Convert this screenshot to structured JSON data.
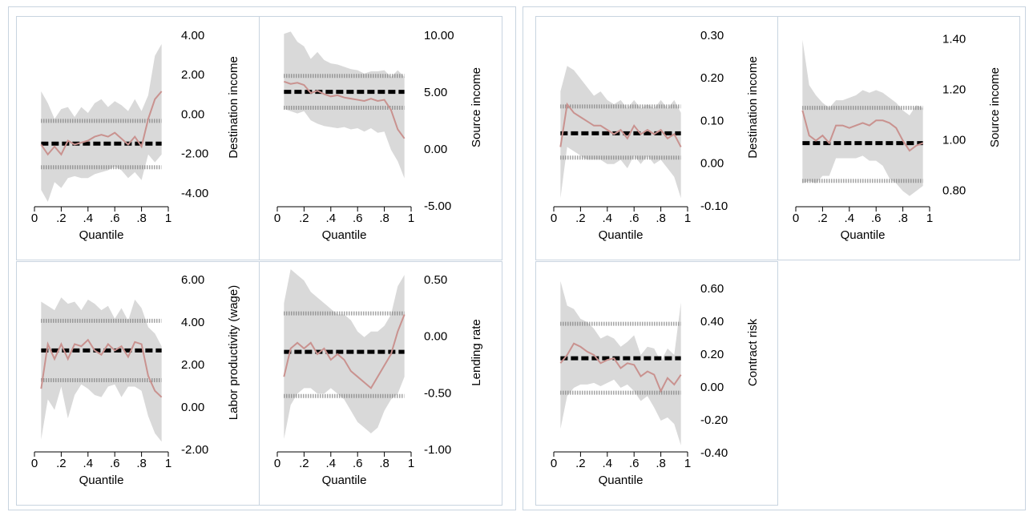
{
  "chart_data": [
    {
      "type": "quantile",
      "xlabel": "Quantile",
      "ylabel": "Destination income",
      "color": "#c9928f",
      "band_color": "#d9d9d9",
      "x": [
        0.05,
        0.1,
        0.15,
        0.2,
        0.25,
        0.3,
        0.35,
        0.4,
        0.45,
        0.5,
        0.55,
        0.6,
        0.65,
        0.7,
        0.75,
        0.8,
        0.85,
        0.9,
        0.95
      ],
      "values": [
        -1.5,
        -2.0,
        -1.6,
        -2.0,
        -1.3,
        -1.5,
        -1.4,
        -1.3,
        -1.1,
        -1.0,
        -1.1,
        -0.9,
        -1.2,
        -1.5,
        -1.1,
        -1.6,
        -0.2,
        0.8,
        1.2
      ],
      "upper": [
        1.2,
        0.6,
        -0.2,
        0.3,
        0.4,
        -0.1,
        0.4,
        0.1,
        0.6,
        0.8,
        0.4,
        0.7,
        0.5,
        0.2,
        0.8,
        0.2,
        1.0,
        3.0,
        3.6
      ],
      "lower": [
        -3.8,
        -4.4,
        -3.4,
        -3.7,
        -3.2,
        -3.1,
        -3.2,
        -3.2,
        -3.0,
        -2.9,
        -2.8,
        -2.6,
        -2.8,
        -3.2,
        -2.9,
        -3.3,
        -2.0,
        -2.4,
        -2.0
      ],
      "ols": -1.45,
      "ols_ci": [
        -2.65,
        -0.3
      ],
      "xlim": [
        0,
        1
      ],
      "xticks": [
        0,
        {
          "value": 0.2,
          "label": ".2"
        },
        {
          "value": 0.4,
          "label": ".4"
        },
        {
          "value": 0.6,
          "label": ".6"
        },
        {
          "value": 0.8,
          "label": ".8"
        },
        1
      ],
      "ylim": [
        -4.65,
        4.61
      ],
      "yticks": [
        {
          "value": 4,
          "label": "4.00"
        },
        {
          "value": 2,
          "label": "2.00"
        },
        {
          "value": 0,
          "label": "0.00"
        },
        {
          "value": -2,
          "label": "-2.00"
        },
        {
          "value": -4,
          "label": "-4.00"
        }
      ]
    },
    {
      "type": "quantile",
      "xlabel": "Quantile",
      "ylabel": "Source income",
      "color": "#c9928f",
      "band_color": "#d9d9d9",
      "x": [
        0.05,
        0.1,
        0.15,
        0.2,
        0.25,
        0.3,
        0.35,
        0.4,
        0.45,
        0.5,
        0.55,
        0.6,
        0.65,
        0.7,
        0.75,
        0.8,
        0.85,
        0.9,
        0.95
      ],
      "values": [
        6.0,
        5.8,
        5.9,
        5.7,
        5.0,
        5.2,
        4.9,
        4.7,
        4.8,
        4.6,
        4.5,
        4.4,
        4.3,
        4.5,
        4.3,
        4.4,
        3.5,
        1.8,
        1.0
      ],
      "upper": [
        10.2,
        10.4,
        9.5,
        9.1,
        8.0,
        8.6,
        7.9,
        7.6,
        7.5,
        7.3,
        7.1,
        7.0,
        6.7,
        6.9,
        6.9,
        7.0,
        6.4,
        7.0,
        6.4
      ],
      "lower": [
        3.6,
        3.4,
        3.2,
        3.4,
        2.6,
        2.3,
        2.1,
        2.0,
        1.9,
        2.0,
        1.8,
        1.9,
        1.6,
        1.9,
        1.5,
        1.6,
        0.0,
        -1.0,
        -2.5
      ],
      "ols": 5.1,
      "ols_ci": [
        3.7,
        6.5
      ],
      "xlim": [
        0,
        1
      ],
      "xticks": [
        0,
        {
          "value": 0.2,
          "label": ".2"
        },
        {
          "value": 0.4,
          "label": ".4"
        },
        {
          "value": 0.6,
          "label": ".6"
        },
        {
          "value": 0.8,
          "label": ".8"
        },
        1
      ],
      "ylim": [
        -5,
        11.06
      ],
      "yticks": [
        {
          "value": 10,
          "label": "10.00"
        },
        {
          "value": 5,
          "label": "5.00"
        },
        {
          "value": 0,
          "label": "0.00"
        },
        {
          "value": -5,
          "label": "-5.00"
        }
      ]
    },
    {
      "type": "quantile",
      "xlabel": "Quantile",
      "ylabel": "Labor productivity (wage)",
      "color": "#c9928f",
      "band_color": "#d9d9d9",
      "x": [
        0.05,
        0.1,
        0.15,
        0.2,
        0.25,
        0.3,
        0.35,
        0.4,
        0.45,
        0.5,
        0.55,
        0.6,
        0.65,
        0.7,
        0.75,
        0.8,
        0.85,
        0.9,
        0.95
      ],
      "values": [
        0.9,
        3.0,
        2.3,
        3.0,
        2.3,
        3.0,
        2.9,
        3.2,
        2.7,
        2.5,
        3.0,
        2.7,
        2.9,
        2.4,
        3.1,
        3.0,
        1.5,
        0.8,
        0.5
      ],
      "upper": [
        5.0,
        4.8,
        4.6,
        5.2,
        4.9,
        5.0,
        4.6,
        5.1,
        4.9,
        4.6,
        4.8,
        4.2,
        4.7,
        4.1,
        5.1,
        4.7,
        3.8,
        3.5,
        2.9
      ],
      "lower": [
        -1.5,
        0.4,
        -0.1,
        1.0,
        -0.5,
        0.6,
        1.1,
        0.9,
        0.6,
        0.5,
        1.0,
        1.1,
        0.5,
        1.0,
        1.0,
        0.8,
        -0.4,
        -1.2,
        -1.6
      ],
      "ols": 2.7,
      "ols_ci": [
        1.3,
        4.1
      ],
      "xlim": [
        0,
        1
      ],
      "xticks": [
        0,
        {
          "value": 0.2,
          "label": ".2"
        },
        {
          "value": 0.4,
          "label": ".4"
        },
        {
          "value": 0.6,
          "label": ".6"
        },
        {
          "value": 0.8,
          "label": ".8"
        },
        1
      ],
      "ylim": [
        -2.08,
        6.53
      ],
      "yticks": [
        {
          "value": 6,
          "label": "6.00"
        },
        {
          "value": 4,
          "label": "4.00"
        },
        {
          "value": 2,
          "label": "2.00"
        },
        {
          "value": 0,
          "label": "0.00"
        },
        {
          "value": -2,
          "label": "-2.00"
        }
      ]
    },
    {
      "type": "quantile",
      "xlabel": "Quantile",
      "ylabel": "Lending rate",
      "color": "#c9928f",
      "band_color": "#d9d9d9",
      "x": [
        0.05,
        0.1,
        0.15,
        0.2,
        0.25,
        0.3,
        0.35,
        0.4,
        0.45,
        0.5,
        0.55,
        0.6,
        0.65,
        0.7,
        0.75,
        0.8,
        0.85,
        0.9,
        0.95
      ],
      "values": [
        -0.35,
        -0.1,
        -0.05,
        -0.1,
        -0.05,
        -0.15,
        -0.1,
        -0.2,
        -0.15,
        -0.2,
        -0.3,
        -0.35,
        -0.4,
        -0.45,
        -0.35,
        -0.25,
        -0.15,
        0.05,
        0.2
      ],
      "upper": [
        0.3,
        0.6,
        0.55,
        0.5,
        0.4,
        0.35,
        0.3,
        0.25,
        0.2,
        0.2,
        0.15,
        0.05,
        0.0,
        0.05,
        0.05,
        0.1,
        0.2,
        0.45,
        0.55
      ],
      "lower": [
        -0.9,
        -0.6,
        -0.5,
        -0.45,
        -0.45,
        -0.5,
        -0.5,
        -0.45,
        -0.5,
        -0.55,
        -0.65,
        -0.75,
        -0.8,
        -0.85,
        -0.8,
        -0.65,
        -0.55,
        -0.5,
        -0.35
      ],
      "ols": -0.13,
      "ols_ci": [
        -0.52,
        0.21
      ],
      "xlim": [
        0,
        1
      ],
      "xticks": [
        0,
        {
          "value": 0.2,
          "label": ".2"
        },
        {
          "value": 0.4,
          "label": ".4"
        },
        {
          "value": 0.6,
          "label": ".6"
        },
        {
          "value": 0.8,
          "label": ".8"
        },
        1
      ],
      "ylim": [
        -1.014,
        0.6
      ],
      "yticks": [
        {
          "value": 0.5,
          "label": "0.50"
        },
        {
          "value": 0,
          "label": "0.00"
        },
        {
          "value": -0.5,
          "label": "-0.50"
        },
        {
          "value": -1,
          "label": "-1.00"
        }
      ]
    },
    {
      "type": "quantile",
      "xlabel": "Quantile",
      "ylabel": "Destination income",
      "color": "#c9928f",
      "band_color": "#d9d9d9",
      "x": [
        0.05,
        0.1,
        0.15,
        0.2,
        0.25,
        0.3,
        0.35,
        0.4,
        0.45,
        0.5,
        0.55,
        0.6,
        0.65,
        0.7,
        0.75,
        0.8,
        0.85,
        0.9,
        0.95
      ],
      "values": [
        0.04,
        0.14,
        0.12,
        0.11,
        0.1,
        0.09,
        0.09,
        0.08,
        0.07,
        0.08,
        0.06,
        0.09,
        0.07,
        0.08,
        0.07,
        0.08,
        0.06,
        0.07,
        0.04
      ],
      "upper": [
        0.17,
        0.23,
        0.22,
        0.2,
        0.18,
        0.16,
        0.17,
        0.15,
        0.14,
        0.15,
        0.13,
        0.15,
        0.13,
        0.14,
        0.13,
        0.15,
        0.13,
        0.15,
        0.12
      ],
      "lower": [
        -0.08,
        0.04,
        0.03,
        0.02,
        0.01,
        0.01,
        0.01,
        0.0,
        0.0,
        0.01,
        -0.01,
        0.02,
        0.0,
        0.02,
        0.0,
        0.01,
        -0.01,
        -0.03,
        -0.08
      ],
      "ols": 0.072,
      "ols_ci": [
        0.015,
        0.135
      ],
      "xlim": [
        0,
        1
      ],
      "xticks": [
        0,
        {
          "value": 0.2,
          "label": ".2"
        },
        {
          "value": 0.4,
          "label": ".4"
        },
        {
          "value": 0.6,
          "label": ".6"
        },
        {
          "value": 0.8,
          "label": ".8"
        },
        1
      ],
      "ylim": [
        -0.1,
        0.328
      ],
      "yticks": [
        {
          "value": 0.3,
          "label": "0.30"
        },
        {
          "value": 0.2,
          "label": "0.20"
        },
        {
          "value": 0.1,
          "label": "0.10"
        },
        {
          "value": 0,
          "label": "0.00"
        },
        {
          "value": -0.1,
          "label": "-0.10"
        }
      ]
    },
    {
      "type": "quantile",
      "xlabel": "Quantile",
      "ylabel": "Source income",
      "color": "#c9928f",
      "band_color": "#d9d9d9",
      "x": [
        0.05,
        0.1,
        0.15,
        0.2,
        0.25,
        0.3,
        0.35,
        0.4,
        0.45,
        0.5,
        0.55,
        0.6,
        0.65,
        0.7,
        0.75,
        0.8,
        0.85,
        0.9,
        0.95
      ],
      "values": [
        1.12,
        1.02,
        1.0,
        1.02,
        0.99,
        1.06,
        1.06,
        1.05,
        1.06,
        1.07,
        1.06,
        1.08,
        1.08,
        1.07,
        1.05,
        1.0,
        0.96,
        0.98,
        0.99
      ],
      "upper": [
        1.4,
        1.22,
        1.18,
        1.15,
        1.13,
        1.16,
        1.16,
        1.17,
        1.18,
        1.2,
        1.19,
        1.2,
        1.19,
        1.17,
        1.15,
        1.12,
        1.1,
        1.14,
        1.13
      ],
      "lower": [
        0.83,
        0.84,
        0.83,
        0.86,
        0.86,
        0.93,
        0.93,
        0.93,
        0.93,
        0.94,
        0.92,
        0.92,
        0.9,
        0.85,
        0.83,
        0.8,
        0.78,
        0.8,
        0.82
      ],
      "ols": 0.99,
      "ols_ci": [
        0.84,
        1.13
      ],
      "xlim": [
        0,
        1
      ],
      "xticks": [
        0,
        {
          "value": 0.2,
          "label": ".2"
        },
        {
          "value": 0.4,
          "label": ".4"
        },
        {
          "value": 0.6,
          "label": ".6"
        },
        {
          "value": 0.8,
          "label": ".8"
        },
        1
      ],
      "ylim": [
        0.7375,
        1.4625
      ],
      "yticks": [
        {
          "value": 1.4,
          "label": "1.40"
        },
        {
          "value": 1.2,
          "label": "1.20"
        },
        {
          "value": 1,
          "label": "1.00"
        },
        {
          "value": 0.8,
          "label": "0.80"
        }
      ]
    },
    {
      "type": "quantile",
      "xlabel": "Quantile",
      "ylabel": "Contract risk",
      "color": "#c9928f",
      "band_color": "#d9d9d9",
      "x": [
        0.05,
        0.1,
        0.15,
        0.2,
        0.25,
        0.3,
        0.35,
        0.4,
        0.45,
        0.5,
        0.55,
        0.6,
        0.65,
        0.7,
        0.75,
        0.8,
        0.85,
        0.9,
        0.95
      ],
      "values": [
        0.15,
        0.2,
        0.27,
        0.25,
        0.22,
        0.2,
        0.15,
        0.17,
        0.18,
        0.12,
        0.15,
        0.14,
        0.07,
        0.1,
        0.08,
        -0.02,
        0.06,
        0.02,
        0.08
      ],
      "upper": [
        0.65,
        0.5,
        0.48,
        0.42,
        0.4,
        0.36,
        0.3,
        0.32,
        0.3,
        0.25,
        0.28,
        0.32,
        0.2,
        0.25,
        0.24,
        0.16,
        0.24,
        0.2,
        0.52
      ],
      "lower": [
        -0.25,
        -0.05,
        0.0,
        0.02,
        0.02,
        0.03,
        0.01,
        0.03,
        0.05,
        0.0,
        0.02,
        -0.02,
        -0.08,
        -0.05,
        -0.12,
        -0.2,
        -0.18,
        -0.22,
        -0.35
      ],
      "ols": 0.18,
      "ols_ci": [
        -0.03,
        0.39
      ],
      "xlim": [
        0,
        1
      ],
      "xticks": [
        0,
        {
          "value": 0.2,
          "label": ".2"
        },
        {
          "value": 0.4,
          "label": ".4"
        },
        {
          "value": 0.6,
          "label": ".6"
        },
        {
          "value": 0.8,
          "label": ".8"
        },
        1
      ],
      "ylim": [
        -0.39,
        0.722
      ],
      "yticks": [
        {
          "value": 0.6,
          "label": "0.60"
        },
        {
          "value": 0.4,
          "label": "0.40"
        },
        {
          "value": 0.2,
          "label": "0.20"
        },
        {
          "value": 0,
          "label": "0.00"
        },
        {
          "value": -0.2,
          "label": "-0.20"
        },
        {
          "value": -0.4,
          "label": "-0.40"
        }
      ]
    }
  ]
}
